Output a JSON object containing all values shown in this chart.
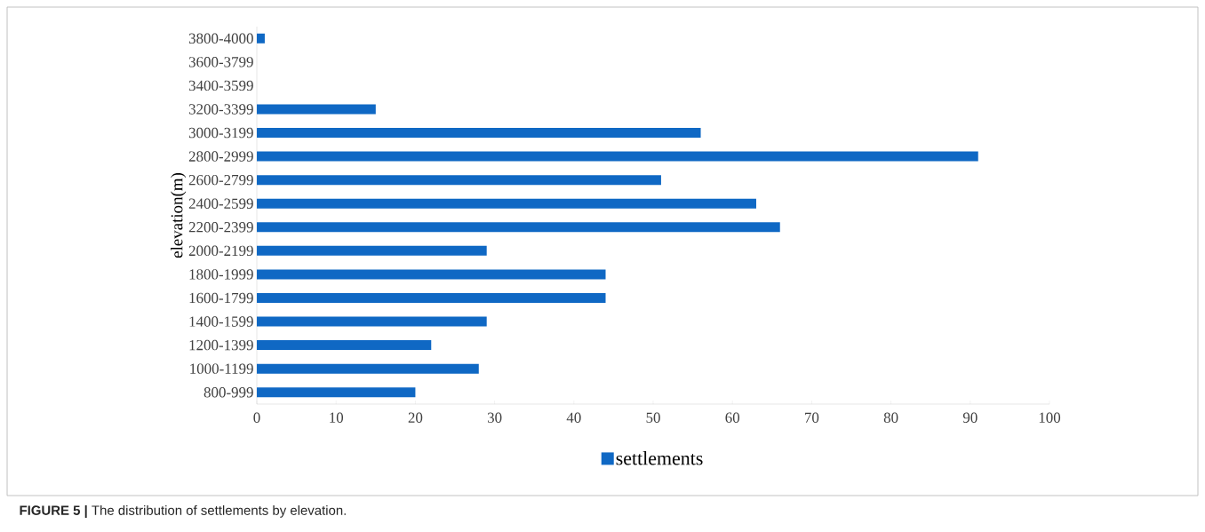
{
  "chart_data": {
    "type": "bar",
    "orientation": "horizontal",
    "ylabel": "elevation(m)",
    "categories": [
      "3800-4000",
      "3600-3799",
      "3400-3599",
      "3200-3399",
      "3000-3199",
      "2800-2999",
      "2600-2799",
      "2400-2599",
      "2200-2399",
      "2000-2199",
      "1800-1999",
      "1600-1799",
      "1400-1599",
      "1200-1399",
      "1000-1199",
      "800-999"
    ],
    "series": [
      {
        "name": "settlements",
        "color": "#0f68c4",
        "values": [
          1,
          0,
          0,
          15,
          56,
          91,
          51,
          63,
          66,
          29,
          44,
          44,
          29,
          22,
          28,
          20
        ]
      }
    ],
    "xlim": [
      0,
      100
    ],
    "xticks": [
      0,
      10,
      20,
      30,
      40,
      50,
      60,
      70,
      80,
      90,
      100
    ],
    "grid": false,
    "legend": "bottom",
    "annotations": [
      "**FIGURE 5 |** The distribution of settlements by elevation."
    ]
  }
}
